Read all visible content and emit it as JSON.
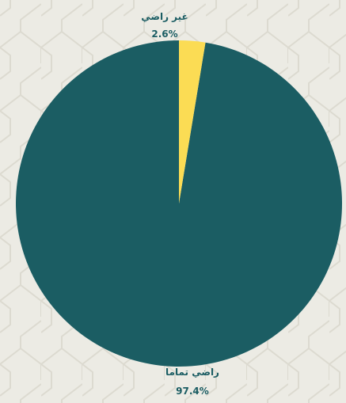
{
  "chart_data": {
    "type": "pie",
    "categories": [
      "راضي تماما",
      "غير راضي"
    ],
    "values": [
      97.4,
      2.6
    ],
    "value_labels": [
      "97.4%",
      "2.6%"
    ],
    "colors": [
      "#1b5d63",
      "#fbdc54"
    ],
    "title": "",
    "legend": "none",
    "start_angle_deg": 0,
    "direction": "counterclockwise"
  },
  "background": {
    "color": "#ecebe4",
    "pattern_color": "#dcdad0"
  }
}
